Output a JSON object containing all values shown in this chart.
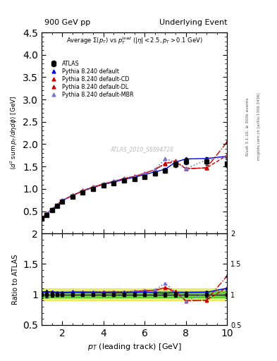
{
  "title_left": "900 GeV pp",
  "title_right": "Underlying Event",
  "subtitle": "Average $\\Sigma(p_T)$ vs $p_T^{lead}$ $(|\\eta| < 2.5, p_T > 0.1$ GeV$)$",
  "watermark": "ATLAS_2010_S8894728",
  "ylabel_main": "$\\langle d^2 \\mathrm{sum}\\, p_T/d\\eta d\\phi\\rangle$ [GeV]",
  "ylabel_ratio": "Ratio to ATLAS",
  "xlabel": "$p_T$ (leading track) [GeV]",
  "right_label1": "Rivet 3.1.10, $\\geq$ 300k events",
  "right_label2": "mcplots.cern.ch [arXiv:1306.3436]",
  "xlim": [
    1.0,
    10.0
  ],
  "ylim_main": [
    0.0,
    4.5
  ],
  "ylim_ratio": [
    0.5,
    2.0
  ],
  "atlas_x": [
    1.0,
    1.25,
    1.5,
    1.75,
    2.0,
    2.5,
    3.0,
    3.5,
    4.0,
    4.5,
    5.0,
    5.5,
    6.0,
    6.5,
    7.0,
    7.5,
    8.0,
    9.0,
    10.0
  ],
  "atlas_y": [
    0.34,
    0.42,
    0.52,
    0.62,
    0.72,
    0.82,
    0.92,
    1.0,
    1.07,
    1.12,
    1.18,
    1.22,
    1.27,
    1.34,
    1.41,
    1.55,
    1.62,
    1.62,
    1.57
  ],
  "atlas_yerr": [
    0.02,
    0.02,
    0.02,
    0.02,
    0.02,
    0.02,
    0.02,
    0.02,
    0.02,
    0.03,
    0.03,
    0.03,
    0.04,
    0.04,
    0.05,
    0.06,
    0.07,
    0.08,
    0.09
  ],
  "pythia_default_y": [
    0.35,
    0.44,
    0.54,
    0.64,
    0.74,
    0.85,
    0.95,
    1.03,
    1.1,
    1.15,
    1.21,
    1.26,
    1.32,
    1.38,
    1.44,
    1.6,
    1.67,
    1.68,
    1.73
  ],
  "pythia_cd_y": [
    0.35,
    0.44,
    0.54,
    0.64,
    0.74,
    0.85,
    0.96,
    1.04,
    1.11,
    1.17,
    1.23,
    1.28,
    1.35,
    1.43,
    1.57,
    1.63,
    1.45,
    1.47,
    2.05
  ],
  "pythia_dl_y": [
    0.35,
    0.44,
    0.54,
    0.64,
    0.74,
    0.85,
    0.96,
    1.04,
    1.11,
    1.17,
    1.23,
    1.28,
    1.35,
    1.43,
    1.57,
    1.6,
    1.45,
    1.47,
    1.75
  ],
  "pythia_mbr_y": [
    0.35,
    0.44,
    0.54,
    0.64,
    0.74,
    0.86,
    0.96,
    1.04,
    1.11,
    1.17,
    1.23,
    1.28,
    1.35,
    1.44,
    1.67,
    1.6,
    1.45,
    1.65,
    1.72
  ],
  "color_default": "#0000ee",
  "color_cd": "#cc0000",
  "color_dl": "#cc0000",
  "color_mbr": "#7777cc",
  "band_green_half": 0.05,
  "band_yellow_half": 0.1,
  "xticks": [
    2,
    4,
    6,
    8,
    10
  ],
  "yticks_main": [
    0.5,
    1.0,
    1.5,
    2.0,
    2.5,
    3.0,
    3.5,
    4.0,
    4.5
  ],
  "yticks_ratio": [
    0.5,
    1.0,
    1.5,
    2.0
  ]
}
